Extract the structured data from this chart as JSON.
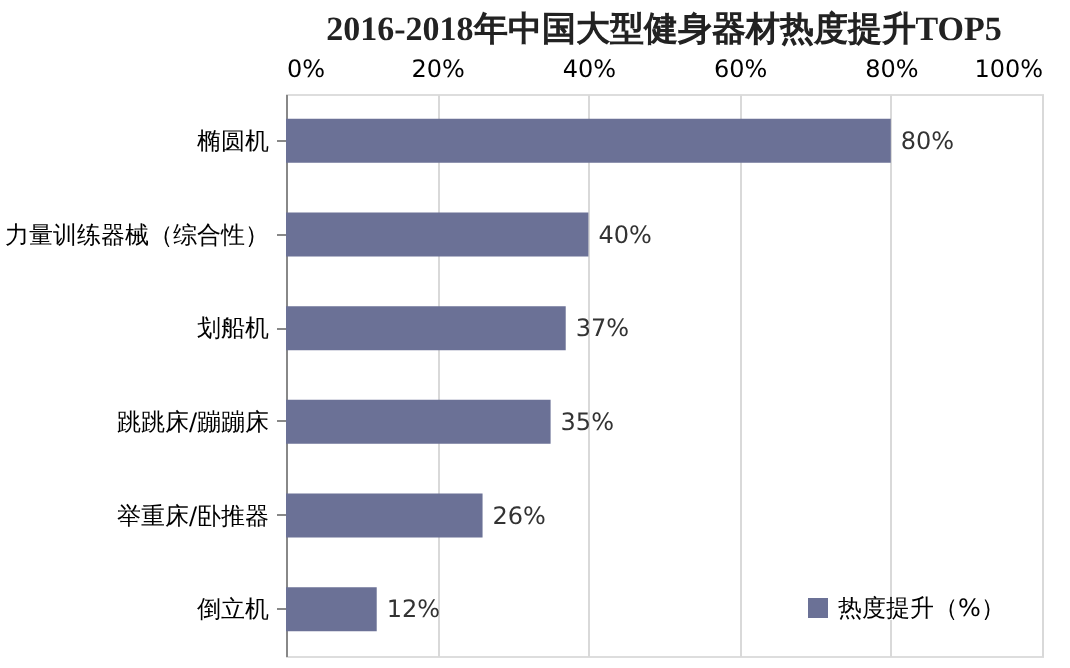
{
  "chart_data": {
    "type": "bar",
    "orientation": "horizontal",
    "title": "2016-2018年中国大型健身器材热度提升TOP5",
    "categories": [
      "椭圆机",
      "力量训练器械（综合性）",
      "划船机",
      "跳跳床/蹦蹦床",
      "举重床/卧推器",
      "倒立机"
    ],
    "series": [
      {
        "name": "热度提升（%）",
        "color": "#6b7196",
        "values": [
          80,
          40,
          37,
          35,
          26,
          12
        ],
        "value_labels": [
          "80%",
          "40%",
          "37%",
          "35%",
          "26%",
          "12%"
        ]
      }
    ],
    "xlim": [
      0,
      100
    ],
    "xticks": [
      {
        "value": 0,
        "label": "0%"
      },
      {
        "value": 20,
        "label": "20%"
      },
      {
        "value": 40,
        "label": "40%"
      },
      {
        "value": 60,
        "label": "60%"
      },
      {
        "value": 80,
        "label": "80%"
      },
      {
        "value": 100,
        "label": "100%"
      }
    ],
    "grid": "x",
    "legend": "bottom right"
  }
}
